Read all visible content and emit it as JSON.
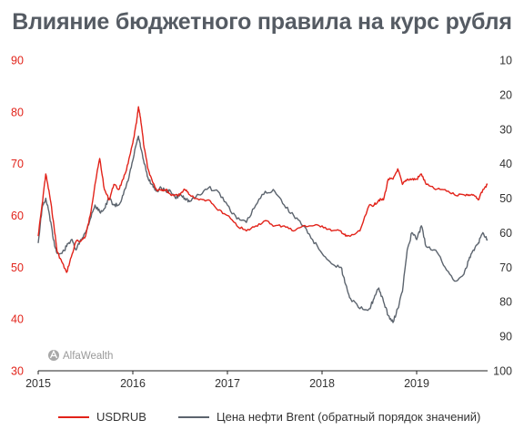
{
  "chart_data": {
    "type": "line",
    "title": "Влияние бюджетного правила на курс рубля",
    "x_ticks": [
      "2015",
      "2016",
      "2017",
      "2018",
      "2019"
    ],
    "y_left": {
      "ticks": [
        90,
        80,
        70,
        60,
        50,
        40,
        30
      ],
      "range": [
        30,
        90
      ],
      "color": "#e2231a"
    },
    "y_right": {
      "ticks": [
        10,
        20,
        30,
        40,
        50,
        60,
        70,
        80,
        90,
        100
      ],
      "range": [
        10,
        100
      ],
      "inverted": true
    },
    "grid": false,
    "legend_position": "bottom",
    "series": [
      {
        "name": "USDRUB",
        "axis": "left",
        "color": "#e2231a",
        "x": [
          2015.0,
          2015.04,
          2015.08,
          2015.12,
          2015.16,
          2015.2,
          2015.25,
          2015.3,
          2015.35,
          2015.4,
          2015.45,
          2015.5,
          2015.55,
          2015.6,
          2015.65,
          2015.7,
          2015.75,
          2015.8,
          2015.85,
          2015.9,
          2015.95,
          2016.0,
          2016.04,
          2016.06,
          2016.08,
          2016.12,
          2016.16,
          2016.2,
          2016.25,
          2016.3,
          2016.35,
          2016.4,
          2016.45,
          2016.5,
          2016.55,
          2016.6,
          2016.7,
          2016.8,
          2016.9,
          2017.0,
          2017.1,
          2017.2,
          2017.3,
          2017.4,
          2017.5,
          2017.6,
          2017.7,
          2017.8,
          2017.9,
          2018.0,
          2018.1,
          2018.2,
          2018.25,
          2018.3,
          2018.4,
          2018.5,
          2018.55,
          2018.6,
          2018.65,
          2018.7,
          2018.75,
          2018.8,
          2018.85,
          2018.9,
          2018.95,
          2019.0,
          2019.05,
          2019.1,
          2019.2,
          2019.3,
          2019.4,
          2019.5,
          2019.55,
          2019.6,
          2019.65,
          2019.7,
          2019.75
        ],
        "y": [
          56,
          62,
          68,
          64,
          59,
          53,
          51,
          49,
          52,
          55,
          55,
          56,
          60,
          66,
          71,
          65,
          63,
          66,
          65,
          67,
          70,
          74,
          78,
          81,
          79,
          73,
          69,
          67,
          65,
          65,
          65,
          64,
          64,
          64,
          65,
          64,
          63,
          63,
          61,
          60,
          58,
          57,
          58,
          59,
          58,
          58,
          57,
          58,
          58,
          58,
          57,
          57,
          56,
          56,
          57,
          62,
          62,
          63,
          63,
          67,
          67,
          69,
          66,
          67,
          67,
          67,
          68,
          66,
          65,
          65,
          64,
          64,
          64,
          64,
          63,
          65,
          66
        ]
      },
      {
        "name": "Цена нефти Brent (обратный порядок значений)",
        "axis": "right",
        "color": "#5c646e",
        "x": [
          2015.0,
          2015.04,
          2015.08,
          2015.12,
          2015.16,
          2015.2,
          2015.25,
          2015.3,
          2015.35,
          2015.4,
          2015.45,
          2015.5,
          2015.55,
          2015.6,
          2015.65,
          2015.7,
          2015.75,
          2015.8,
          2015.85,
          2015.9,
          2015.95,
          2016.0,
          2016.04,
          2016.06,
          2016.08,
          2016.12,
          2016.16,
          2016.2,
          2016.25,
          2016.3,
          2016.35,
          2016.4,
          2016.45,
          2016.5,
          2016.55,
          2016.6,
          2016.7,
          2016.8,
          2016.9,
          2017.0,
          2017.1,
          2017.2,
          2017.3,
          2017.4,
          2017.5,
          2017.6,
          2017.7,
          2017.8,
          2017.9,
          2018.0,
          2018.1,
          2018.2,
          2018.25,
          2018.3,
          2018.4,
          2018.5,
          2018.55,
          2018.6,
          2018.65,
          2018.7,
          2018.75,
          2018.8,
          2018.85,
          2018.9,
          2018.95,
          2019.0,
          2019.05,
          2019.1,
          2019.2,
          2019.3,
          2019.4,
          2019.5,
          2019.55,
          2019.6,
          2019.65,
          2019.7,
          2019.75
        ],
        "y": [
          63,
          53,
          50,
          55,
          62,
          66,
          66,
          64,
          62,
          65,
          62,
          60,
          56,
          52,
          54,
          53,
          50,
          52,
          52,
          49,
          45,
          39,
          34,
          32,
          35,
          40,
          44,
          46,
          48,
          47,
          48,
          48,
          50,
          49,
          50,
          51,
          49,
          47,
          48,
          52,
          56,
          57,
          52,
          48,
          48,
          52,
          55,
          58,
          62,
          66,
          69,
          70,
          75,
          79,
          82,
          82,
          79,
          76,
          80,
          84,
          86,
          82,
          77,
          65,
          60,
          62,
          58,
          64,
          65,
          70,
          74,
          72,
          68,
          65,
          63,
          60,
          62
        ]
      }
    ],
    "watermark": "AlfaWealth"
  }
}
